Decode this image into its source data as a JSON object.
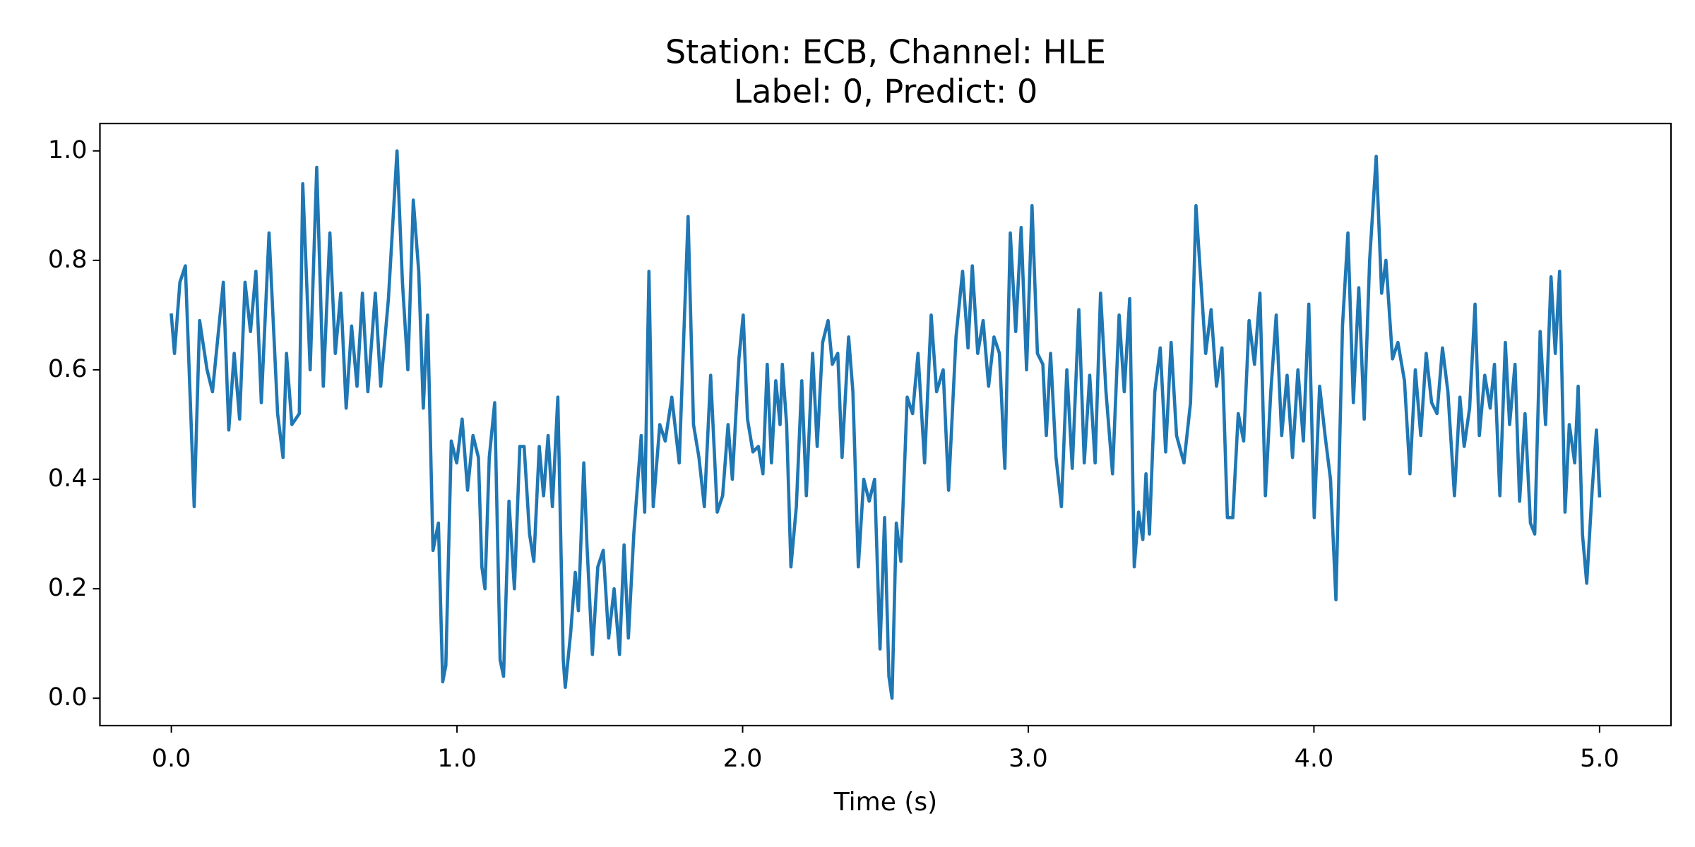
{
  "chart_data": {
    "type": "line",
    "title": "Station: ECB, Channel: HLE",
    "subtitle": "Label: 0, Predict: 0",
    "x_label": "Time (s)",
    "color": "#1f77b4",
    "xlim": [
      -0.25,
      5.25
    ],
    "ylim": [
      -0.05,
      1.05
    ],
    "xticks": [
      {
        "value": 0,
        "label": "0.0"
      },
      {
        "value": 1,
        "label": "1.0"
      },
      {
        "value": 2,
        "label": "2.0"
      },
      {
        "value": 3,
        "label": "3.0"
      },
      {
        "value": 4,
        "label": "4.0"
      },
      {
        "value": 5,
        "label": "5.0"
      }
    ],
    "yticks": [
      {
        "value": 0,
        "label": "0.0"
      },
      {
        "value": 0.2,
        "label": "0.2"
      },
      {
        "value": 0.4,
        "label": "0.4"
      },
      {
        "value": 0.6,
        "label": "0.6"
      },
      {
        "value": 0.8,
        "label": "0.8"
      },
      {
        "value": 1,
        "label": "1.0"
      }
    ],
    "x": [
      0,
      0.011,
      0.03,
      0.049,
      0.08,
      0.099,
      0.125,
      0.144,
      0.182,
      0.201,
      0.22,
      0.239,
      0.258,
      0.277,
      0.296,
      0.315,
      0.342,
      0.372,
      0.391,
      0.403,
      0.422,
      0.448,
      0.46,
      0.486,
      0.509,
      0.532,
      0.555,
      0.574,
      0.593,
      0.612,
      0.631,
      0.65,
      0.669,
      0.688,
      0.714,
      0.733,
      0.76,
      0.79,
      0.809,
      0.828,
      0.847,
      0.866,
      0.882,
      0.897,
      0.916,
      0.935,
      0.95,
      0.961,
      0.98,
      0.999,
      1.018,
      1.037,
      1.056,
      1.075,
      1.087,
      1.098,
      1.113,
      1.132,
      1.151,
      1.163,
      1.182,
      1.201,
      1.22,
      1.235,
      1.254,
      1.269,
      1.288,
      1.303,
      1.319,
      1.334,
      1.353,
      1.372,
      1.379,
      1.398,
      1.414,
      1.425,
      1.444,
      1.455,
      1.474,
      1.493,
      1.512,
      1.531,
      1.55,
      1.569,
      1.585,
      1.6,
      1.619,
      1.645,
      1.657,
      1.672,
      1.687,
      1.71,
      1.729,
      1.752,
      1.778,
      1.809,
      1.828,
      1.847,
      1.866,
      1.888,
      1.911,
      1.93,
      1.949,
      1.964,
      1.987,
      2.002,
      2.017,
      2.036,
      2.055,
      2.071,
      2.086,
      2.101,
      2.116,
      2.131,
      2.139,
      2.154,
      2.169,
      2.188,
      2.207,
      2.223,
      2.245,
      2.261,
      2.28,
      2.299,
      2.314,
      2.333,
      2.348,
      2.371,
      2.386,
      2.405,
      2.424,
      2.443,
      2.462,
      2.481,
      2.497,
      2.512,
      2.523,
      2.538,
      2.554,
      2.576,
      2.595,
      2.614,
      2.637,
      2.66,
      2.679,
      2.702,
      2.721,
      2.747,
      2.77,
      2.789,
      2.804,
      2.823,
      2.842,
      2.861,
      2.88,
      2.899,
      2.918,
      2.937,
      2.956,
      2.975,
      2.994,
      3.013,
      3.032,
      3.051,
      3.063,
      3.078,
      3.097,
      3.116,
      3.135,
      3.154,
      3.177,
      3.196,
      3.215,
      3.234,
      3.253,
      3.272,
      3.295,
      3.318,
      3.336,
      3.355,
      3.371,
      3.386,
      3.401,
      3.412,
      3.424,
      3.443,
      3.462,
      3.481,
      3.5,
      3.519,
      3.545,
      3.568,
      3.587,
      3.602,
      3.621,
      3.64,
      3.659,
      3.678,
      3.697,
      3.716,
      3.735,
      3.754,
      3.773,
      3.792,
      3.811,
      3.83,
      3.849,
      3.868,
      3.887,
      3.906,
      3.925,
      3.944,
      3.963,
      3.982,
      4.001,
      4.02,
      4.039,
      4.058,
      4.077,
      4.1,
      4.119,
      4.138,
      4.157,
      4.176,
      4.195,
      4.218,
      4.237,
      4.252,
      4.275,
      4.294,
      4.317,
      4.336,
      4.355,
      4.374,
      4.393,
      4.412,
      4.431,
      4.45,
      4.469,
      4.492,
      4.511,
      4.526,
      4.545,
      4.564,
      4.579,
      4.598,
      4.617,
      4.632,
      4.651,
      4.67,
      4.685,
      4.704,
      4.72,
      4.739,
      4.758,
      4.773,
      4.792,
      4.811,
      4.83,
      4.845,
      4.86,
      4.879,
      4.894,
      4.913,
      4.925,
      4.94,
      4.955,
      4.974,
      4.989,
      5.0
    ],
    "values": [
      0.7,
      0.63,
      0.76,
      0.79,
      0.35,
      0.69,
      0.6,
      0.56,
      0.76,
      0.49,
      0.63,
      0.51,
      0.76,
      0.67,
      0.78,
      0.54,
      0.85,
      0.52,
      0.44,
      0.63,
      0.5,
      0.52,
      0.94,
      0.6,
      0.97,
      0.57,
      0.85,
      0.63,
      0.74,
      0.53,
      0.68,
      0.57,
      0.74,
      0.56,
      0.74,
      0.57,
      0.73,
      1.0,
      0.76,
      0.6,
      0.91,
      0.78,
      0.53,
      0.7,
      0.27,
      0.32,
      0.03,
      0.06,
      0.47,
      0.43,
      0.51,
      0.38,
      0.48,
      0.44,
      0.24,
      0.2,
      0.44,
      0.54,
      0.07,
      0.04,
      0.36,
      0.2,
      0.46,
      0.46,
      0.3,
      0.25,
      0.46,
      0.37,
      0.48,
      0.35,
      0.55,
      0.07,
      0.02,
      0.12,
      0.23,
      0.16,
      0.43,
      0.28,
      0.08,
      0.24,
      0.27,
      0.11,
      0.2,
      0.08,
      0.28,
      0.11,
      0.3,
      0.48,
      0.34,
      0.78,
      0.35,
      0.5,
      0.47,
      0.55,
      0.43,
      0.88,
      0.5,
      0.44,
      0.35,
      0.59,
      0.34,
      0.37,
      0.5,
      0.4,
      0.62,
      0.7,
      0.51,
      0.45,
      0.46,
      0.41,
      0.61,
      0.43,
      0.58,
      0.5,
      0.61,
      0.5,
      0.24,
      0.35,
      0.58,
      0.37,
      0.63,
      0.46,
      0.65,
      0.69,
      0.61,
      0.63,
      0.44,
      0.66,
      0.56,
      0.24,
      0.4,
      0.36,
      0.4,
      0.09,
      0.33,
      0.04,
      0.0,
      0.32,
      0.25,
      0.55,
      0.52,
      0.63,
      0.43,
      0.7,
      0.56,
      0.6,
      0.38,
      0.66,
      0.78,
      0.64,
      0.79,
      0.63,
      0.69,
      0.57,
      0.66,
      0.63,
      0.42,
      0.85,
      0.67,
      0.86,
      0.6,
      0.9,
      0.63,
      0.61,
      0.48,
      0.63,
      0.44,
      0.35,
      0.6,
      0.42,
      0.71,
      0.43,
      0.59,
      0.43,
      0.74,
      0.56,
      0.41,
      0.7,
      0.56,
      0.73,
      0.24,
      0.34,
      0.29,
      0.41,
      0.3,
      0.56,
      0.64,
      0.45,
      0.65,
      0.48,
      0.43,
      0.54,
      0.9,
      0.78,
      0.63,
      0.71,
      0.57,
      0.64,
      0.33,
      0.33,
      0.52,
      0.47,
      0.69,
      0.61,
      0.74,
      0.37,
      0.56,
      0.7,
      0.48,
      0.59,
      0.44,
      0.6,
      0.47,
      0.72,
      0.33,
      0.57,
      0.48,
      0.4,
      0.18,
      0.68,
      0.85,
      0.54,
      0.75,
      0.51,
      0.8,
      0.99,
      0.74,
      0.8,
      0.62,
      0.65,
      0.58,
      0.41,
      0.6,
      0.48,
      0.63,
      0.54,
      0.52,
      0.64,
      0.56,
      0.37,
      0.55,
      0.46,
      0.53,
      0.72,
      0.48,
      0.59,
      0.53,
      0.61,
      0.37,
      0.65,
      0.5,
      0.61,
      0.36,
      0.52,
      0.32,
      0.3,
      0.67,
      0.5,
      0.77,
      0.63,
      0.78,
      0.34,
      0.5,
      0.43,
      0.57,
      0.3,
      0.21,
      0.38,
      0.49,
      0.37
    ]
  }
}
